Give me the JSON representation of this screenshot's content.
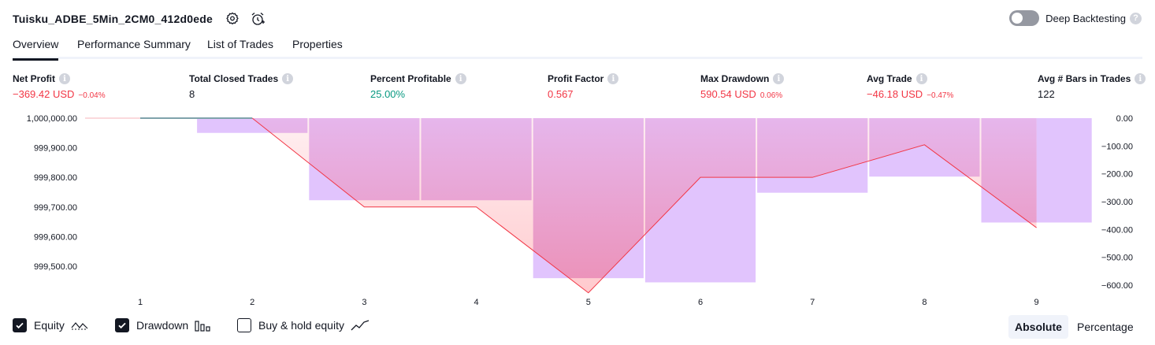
{
  "header": {
    "strategy_name": "Tuisku_ADBE_5Min_2CM0_412d0ede",
    "settings_icon": "gear-icon",
    "alert_icon": "alarm-add-icon"
  },
  "deep_backtesting": {
    "label": "Deep Backtesting",
    "enabled": false,
    "help": "?"
  },
  "tabs": [
    {
      "label": "Overview",
      "active": true
    },
    {
      "label": "Performance Summary",
      "active": false
    },
    {
      "label": "List of Trades",
      "active": false
    },
    {
      "label": "Properties",
      "active": false
    }
  ],
  "metrics": {
    "net_profit": {
      "label": "Net Profit",
      "value": "−369.42 USD",
      "sub": "−0.04%"
    },
    "total_closed_trades": {
      "label": "Total Closed Trades",
      "value": "8"
    },
    "percent_profitable": {
      "label": "Percent Profitable",
      "value": "25.00%"
    },
    "profit_factor": {
      "label": "Profit Factor",
      "value": "0.567"
    },
    "max_drawdown": {
      "label": "Max Drawdown",
      "value": "590.54 USD",
      "sub": "0.06%"
    },
    "avg_trade": {
      "label": "Avg Trade",
      "value": "−46.18 USD",
      "sub": "−0.47%"
    },
    "avg_bars": {
      "label": "Avg # Bars in Trades",
      "value": "122"
    }
  },
  "chart_data": {
    "type": "bar",
    "categories": [
      "1",
      "2",
      "3",
      "4",
      "5",
      "6",
      "7",
      "8",
      "9"
    ],
    "left_axis_ticks": [
      "1,000,000.00",
      "999,900.00",
      "999,800.00",
      "999,700.00",
      "999,600.00",
      "999,500.00"
    ],
    "left_axis_values": [
      1000000,
      999900,
      999800,
      999700,
      999600,
      999500
    ],
    "left_ylim": [
      999420,
      1000000
    ],
    "right_axis_ticks": [
      "0.00",
      "−100.00",
      "−200.00",
      "−300.00",
      "−400.00",
      "−500.00",
      "−600.00"
    ],
    "right_axis_values": [
      0,
      -100,
      -200,
      -300,
      -400,
      -500,
      -600
    ],
    "right_ylim": [
      -600,
      0
    ],
    "series": [
      {
        "name": "Equity",
        "type": "line",
        "x": [
          "1",
          "2",
          "3",
          "4",
          "5",
          "6",
          "7",
          "8",
          "9"
        ],
        "values": [
          1000000,
          1000000,
          999700,
          999700,
          999410,
          999800,
          999800,
          999910,
          999630
        ]
      },
      {
        "name": "Drawdown",
        "type": "bar",
        "values": [
          0,
          -53,
          -295,
          -295,
          -575,
          -590,
          -268,
          -210,
          -375
        ]
      }
    ],
    "equity_color": "#f23645",
    "drawdown_color": "#e1c4fd",
    "drawdown_region_color": "#ec90b6"
  },
  "legend": [
    {
      "label": "Equity",
      "checked": true,
      "icon": "equity-line-icon"
    },
    {
      "label": "Drawdown",
      "checked": true,
      "icon": "drawdown-bars-icon"
    },
    {
      "label": "Buy & hold equity",
      "checked": false,
      "icon": "buy-hold-line-icon"
    }
  ],
  "scale_modes": [
    {
      "label": "Absolute",
      "active": true
    },
    {
      "label": "Percentage",
      "active": false
    }
  ]
}
